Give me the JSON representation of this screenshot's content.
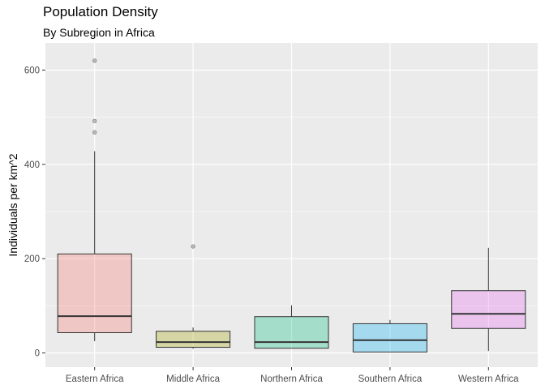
{
  "chart_data": {
    "type": "boxplot",
    "title": "Population Density",
    "subtitle": "By Subregion in Africa",
    "xlabel": "",
    "ylabel": "Individuals per km^2",
    "ylim": [
      -30,
      660
    ],
    "y_ticks": [
      0,
      200,
      400,
      600
    ],
    "grid": true,
    "legend": "none",
    "categories": [
      "Eastern Africa",
      "Middle Africa",
      "Northern Africa",
      "Southern Africa",
      "Western Africa"
    ],
    "boxes": [
      {
        "category": "Eastern Africa",
        "lower_whisker": 25,
        "q1": 43,
        "median": 78,
        "q3": 210,
        "upper_whisker": 428,
        "outliers": [
          468,
          492,
          620
        ],
        "color": "#F8766D"
      },
      {
        "category": "Middle Africa",
        "lower_whisker": 9,
        "q1": 12,
        "median": 23,
        "q3": 46,
        "upper_whisker": 54,
        "outliers": [
          226
        ],
        "color": "#A3A500"
      },
      {
        "category": "Northern Africa",
        "lower_whisker": 10,
        "q1": 10,
        "median": 23,
        "q3": 77,
        "upper_whisker": 101,
        "outliers": [],
        "color": "#00BF7D"
      },
      {
        "category": "Southern Africa",
        "lower_whisker": 2,
        "q1": 2,
        "median": 27,
        "q3": 62,
        "upper_whisker": 70,
        "outliers": [],
        "color": "#00B0F6"
      },
      {
        "category": "Western Africa",
        "lower_whisker": 4,
        "q1": 52,
        "median": 83,
        "q3": 132,
        "upper_whisker": 223,
        "outliers": [],
        "color": "#E76BF3"
      }
    ]
  }
}
